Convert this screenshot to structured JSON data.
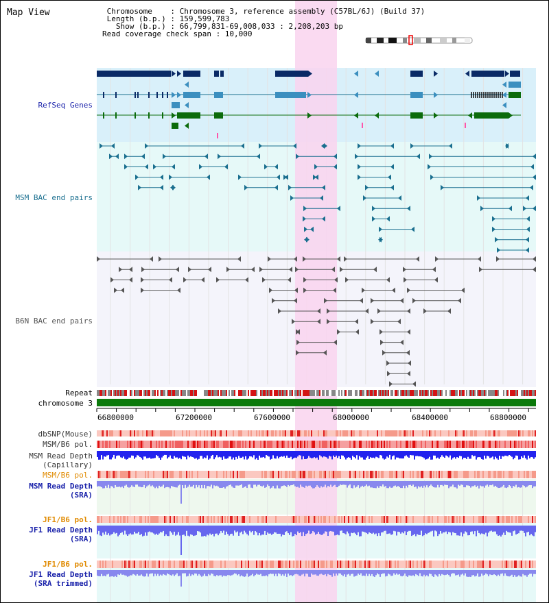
{
  "header": {
    "title": "Map View",
    "info_lines": [
      " Chromosome    : Chromosome 3, reference assembly (C57BL/6J) (Build 37)",
      " Length (b.p.) : 159,599,783",
      "   Show (b.p.) : 66,799,831-69,008,033 : 2,208,203 bp",
      "Read coverage check span : 10,000"
    ]
  },
  "tracks": {
    "refseq": "RefSeq Genes",
    "msm_bac": "MSM BAC end pairs",
    "b6n_bac": "B6N BAC end pairs",
    "repeat": "Repeat",
    "chromosome": "chromosome 3",
    "dbsnp": "dbSNP(Mouse)",
    "msm_b6_pol_1": "MSM/B6 pol.",
    "msm_read_depth_cap_1": "MSM Read Depth",
    "msm_read_depth_cap_2": "(Capillary)",
    "msm_b6_pol_2": "MSM/B6 pol.",
    "msm_read_depth_sra_1": "MSM Read Depth",
    "msm_read_depth_sra_2": "(SRA)",
    "jf1_b6_pol_1": "JF1/B6 pol.",
    "jf1_read_depth_sra_1": "JF1 Read Depth",
    "jf1_read_depth_sra_2": "(SRA)",
    "jf1_b6_pol_2": "JF1/B6 pol.",
    "jf1_read_depth_trim_1": "JF1 Read Depth",
    "jf1_read_depth_trim_2": "(SRA trimmed)"
  },
  "axis": {
    "ticks": [
      "66800000",
      "67200000",
      "67600000",
      "68000000",
      "68400000",
      "68800000"
    ]
  },
  "colors": {
    "highlight": "#f9d3ef",
    "refseq_bg": "#d9f0fa",
    "msm_bg": "#e6f9f8",
    "b6n_bg": "#f4f4fb",
    "gene_dark": "#0a2a66",
    "gene_mid": "#3b8fbf",
    "gene_green": "#0b6b0b",
    "msm_pair": "#1a6f8f",
    "b6n_pair": "#555555",
    "chromosome": "#0b7a0b",
    "read_depth": "#2222ee",
    "label_blue": "#1a22aa",
    "label_orange": "#e08a00",
    "label_teal": "#1a6f8f"
  }
}
